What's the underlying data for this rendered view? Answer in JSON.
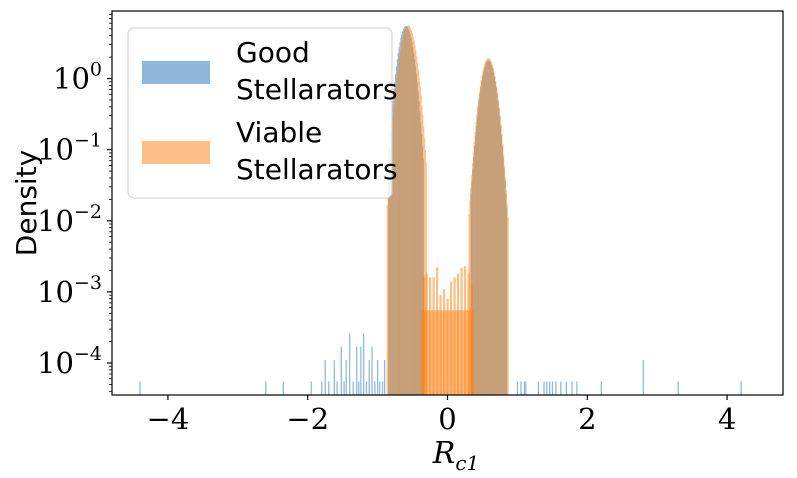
{
  "chart_data": {
    "type": "histogram",
    "yscale": "log",
    "xlabel_main": "R",
    "xlabel_sub": "c1",
    "ylabel": "Density",
    "xlim": [
      -4.8,
      4.8
    ],
    "ylim_log10": [
      -4.45,
      0.95
    ],
    "xticks": [
      -4,
      -2,
      0,
      2,
      4
    ],
    "xtick_labels": [
      "−4",
      "−2",
      "0",
      "2",
      "4"
    ],
    "yticks_exp": [
      0,
      -1,
      -2,
      -3,
      -4
    ],
    "ytick_base": "10",
    "ytick_exponents": [
      "0",
      "−1",
      "−2",
      "−3",
      "−4"
    ],
    "legend": {
      "position": "upper-left",
      "entries": [
        {
          "line1": "Good",
          "line2": "Stellarators",
          "color": "#8fb9dc"
        },
        {
          "line1": "Viable",
          "line2": "Stellarators",
          "color": "#ffbf86"
        }
      ]
    },
    "series": [
      {
        "name": "Good Stellarators",
        "color": "#1f77b4",
        "alpha": 0.5,
        "peaks": [
          {
            "center": -0.6,
            "height": 5.5,
            "sigma": 0.085,
            "cutoff": [
              -0.85,
              -0.35
            ]
          },
          {
            "center": 0.58,
            "height": 1.8,
            "sigma": 0.085,
            "cutoff": [
              0.33,
              0.85
            ]
          }
        ],
        "sparse_spikes": {
          "x": [
            -4.4,
            -2.6,
            -2.35,
            -1.95,
            -1.8,
            -1.75,
            -1.7,
            -1.62,
            -1.58,
            -1.52,
            -1.48,
            -1.45,
            -1.4,
            -1.35,
            -1.3,
            -1.27,
            -1.24,
            -1.2,
            -1.16,
            -1.12,
            -1.08,
            -1.04,
            -1.0,
            -0.97,
            -0.93,
            -0.9,
            1.0,
            1.05,
            1.1,
            1.12,
            1.3,
            1.38,
            1.42,
            1.46,
            1.5,
            1.55,
            1.62,
            1.7,
            1.78,
            1.85,
            2.2,
            2.8,
            3.3,
            4.2
          ],
          "y": [
            5.5e-05,
            5.5e-05,
            5.5e-05,
            5.5e-05,
            5.5e-05,
            0.00011,
            5.5e-05,
            0.00011,
            5.5e-05,
            0.00017,
            5.5e-05,
            0.00011,
            0.00026,
            5.5e-05,
            0.00017,
            5.5e-05,
            0.00017,
            0.00026,
            5.5e-05,
            0.00011,
            0.00017,
            5.5e-05,
            0.00011,
            5.5e-05,
            5.5e-05,
            0.00011,
            5.5e-05,
            5.5e-05,
            5.5e-05,
            5.5e-05,
            5.5e-05,
            5.5e-05,
            5.5e-05,
            5.5e-05,
            5.5e-05,
            5.5e-05,
            5.5e-05,
            5.5e-05,
            5.5e-05,
            5.5e-05,
            5.5e-05,
            0.00011,
            5.5e-05,
            5.5e-05
          ]
        }
      },
      {
        "name": "Viable Stellarators",
        "color": "#ff7f0e",
        "alpha": 0.5,
        "peaks": [
          {
            "center": -0.57,
            "height": 5.6,
            "sigma": 0.088,
            "cutoff": [
              -0.87,
              -0.3
            ]
          },
          {
            "center": 0.58,
            "height": 1.95,
            "sigma": 0.088,
            "cutoff": [
              0.3,
              0.87
            ]
          }
        ],
        "middle_band": {
          "range": [
            -0.38,
            0.38
          ],
          "base": 0.00055
        },
        "middle_spikes": {
          "x": [
            -0.34,
            -0.3,
            -0.25,
            -0.2,
            -0.15,
            -0.1,
            -0.05,
            0.0,
            0.05,
            0.1,
            0.15,
            0.2,
            0.25,
            0.3,
            0.35
          ],
          "y": [
            0.0016,
            0.0018,
            0.0016,
            0.0016,
            0.0022,
            0.0009,
            0.0011,
            0.0008,
            0.0014,
            0.0016,
            0.0018,
            0.0022,
            0.0023,
            0.0018,
            0.0012
          ]
        }
      }
    ]
  }
}
